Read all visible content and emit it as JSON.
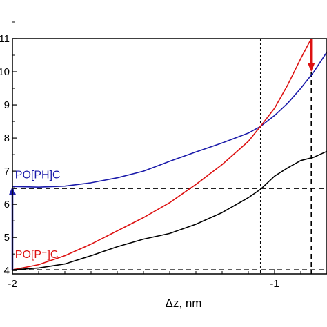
{
  "chart_data": {
    "type": "line",
    "xlabel": "Δz, nm",
    "xlim": [
      -2.0,
      -0.8
    ],
    "ylim": [
      3.9,
      11.0
    ],
    "x_ticks": [
      {
        "value": -2.0,
        "label": "-2"
      },
      {
        "value": -1.0,
        "label": "-1"
      }
    ],
    "y_ticks": [
      {
        "value": 4,
        "label": "4"
      },
      {
        "value": 5,
        "label": "5"
      },
      {
        "value": 6,
        "label": "6"
      },
      {
        "value": 7,
        "label": "7"
      },
      {
        "value": 8,
        "label": "8"
      },
      {
        "value": 9,
        "label": "9"
      },
      {
        "value": 10,
        "label": "10"
      },
      {
        "value": 11,
        "label": "11"
      }
    ],
    "series": [
      {
        "name": "PO[PH]C",
        "color": "#1a1aaa",
        "x": [
          -2.0,
          -1.9,
          -1.8,
          -1.7,
          -1.6,
          -1.5,
          -1.4,
          -1.3,
          -1.2,
          -1.1,
          -1.054,
          -1.0,
          -0.95,
          -0.9,
          -0.85,
          -0.8,
          -0.77
        ],
        "y": [
          6.54,
          6.52,
          6.55,
          6.65,
          6.8,
          7.0,
          7.3,
          7.58,
          7.85,
          8.15,
          8.35,
          8.68,
          9.05,
          9.5,
          10.0,
          10.6,
          11.0
        ]
      },
      {
        "name": "PO[P⁻]C",
        "color": "#dd1111",
        "x": [
          -2.0,
          -1.9,
          -1.8,
          -1.7,
          -1.6,
          -1.5,
          -1.4,
          -1.3,
          -1.2,
          -1.1,
          -1.054,
          -1.0,
          -0.95,
          -0.9,
          -0.86
        ],
        "y": [
          4.02,
          4.18,
          4.45,
          4.8,
          5.2,
          5.6,
          6.05,
          6.6,
          7.2,
          7.9,
          8.35,
          8.9,
          9.6,
          10.4,
          11.0
        ]
      },
      {
        "name": "",
        "color": "#000000",
        "x": [
          -2.0,
          -1.9,
          -1.8,
          -1.7,
          -1.6,
          -1.5,
          -1.4,
          -1.3,
          -1.2,
          -1.1,
          -1.054,
          -1.0,
          -0.95,
          -0.9,
          -0.85,
          -0.8
        ],
        "y": [
          4.02,
          4.08,
          4.2,
          4.45,
          4.72,
          4.95,
          5.12,
          5.4,
          5.75,
          6.2,
          6.45,
          6.85,
          7.1,
          7.32,
          7.42,
          7.6
        ]
      }
    ],
    "dashed_horizontal": [
      6.48,
      4.02
    ],
    "dashed_vertical": [
      {
        "x": -1.054,
        "style": "fine"
      },
      {
        "x": -0.86,
        "style": "bold"
      }
    ],
    "arrows": [
      {
        "color": "#1a1aaa",
        "x": -2.0,
        "y_from": 4.02,
        "y_to": 6.54
      },
      {
        "color": "#dd1111",
        "x": -0.86,
        "y_from": 11.0,
        "y_to": 10.0
      }
    ],
    "labels": [
      {
        "text": "PO[PH]C",
        "color": "#1a1aaa",
        "x": -1.99,
        "y": 6.78
      },
      {
        "text": "PO[P⁻]C",
        "color": "#dd1111",
        "x": -1.99,
        "y": 4.38
      }
    ]
  }
}
